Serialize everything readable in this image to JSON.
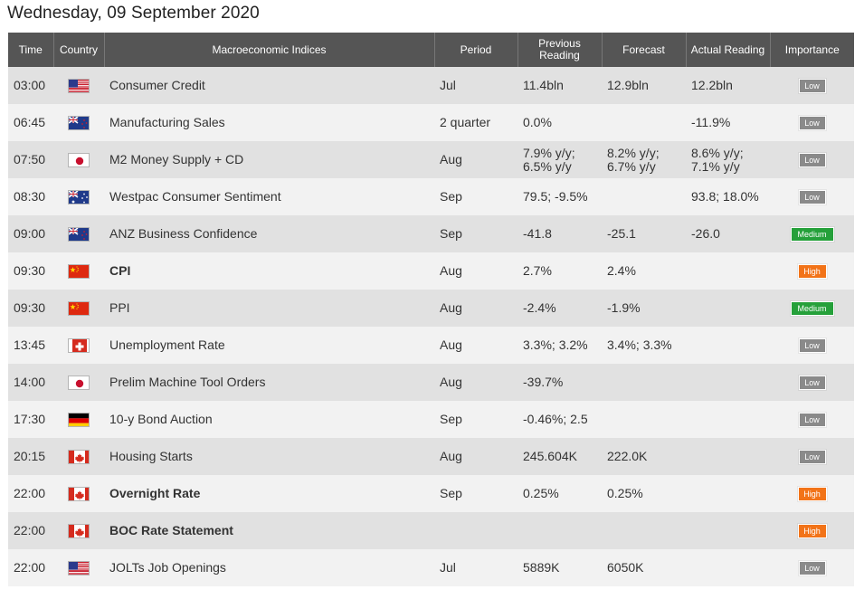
{
  "page": {
    "title": "Wednesday, 09 September 2020"
  },
  "colors": {
    "header_bg": "#555555",
    "row_odd": "#e1e1e1",
    "row_even": "#f2f2f2",
    "negative": "#e2211c",
    "positive": "#2e8b1e",
    "low": "#8a8a8a",
    "medium": "#25a03a",
    "high": "#f27318"
  },
  "headers": {
    "time": "Time",
    "country": "Country",
    "index": "Macroeconomic Indices",
    "period": "Period",
    "previous_line1": "Previous",
    "previous_line2": "Reading",
    "forecast": "Forecast",
    "actual": "Actual Reading",
    "importance": "Importance"
  },
  "rows": [
    {
      "time": "03:00",
      "country": "us-flag-icon",
      "index": "Consumer Credit",
      "bold": false,
      "period": "Jul",
      "previous": [
        "11.4bln"
      ],
      "forecast": [
        "12.9bln"
      ],
      "actual": [
        "12.2bln"
      ],
      "actual_tone": "neg",
      "importance": "Low",
      "imp_class": "low"
    },
    {
      "time": "06:45",
      "country": "nz-flag-icon",
      "index": "Manufacturing Sales",
      "bold": false,
      "period": "2 quarter",
      "previous": [
        "0.0%"
      ],
      "forecast": [
        ""
      ],
      "actual": [
        "-11.9%"
      ],
      "actual_tone": "neu",
      "importance": "Low",
      "imp_class": "low"
    },
    {
      "time": "07:50",
      "country": "jp-flag-icon",
      "index": "M2 Money Supply + CD",
      "bold": false,
      "period": "Aug",
      "previous": [
        "7.9% y/y;",
        "6.5% y/y"
      ],
      "forecast": [
        "8.2% y/y;",
        "6.7% y/y"
      ],
      "actual": [
        "8.6% y/y;",
        "7.1% y/y"
      ],
      "actual_tone": "pos",
      "importance": "Low",
      "imp_class": "low"
    },
    {
      "time": "08:30",
      "country": "au-flag-icon",
      "index": "Westpac Consumer Sentiment",
      "bold": false,
      "period": "Sep",
      "previous": [
        "79.5; -9.5%"
      ],
      "forecast": [
        ""
      ],
      "actual": [
        "93.8; 18.0%"
      ],
      "actual_tone": "neu",
      "importance": "Low",
      "imp_class": "low"
    },
    {
      "time": "09:00",
      "country": "nz-flag-icon",
      "index": "ANZ Business Confidence",
      "bold": false,
      "period": "Sep",
      "previous": [
        "-41.8"
      ],
      "forecast": [
        "-25.1"
      ],
      "actual": [
        "-26.0"
      ],
      "actual_tone": "neg",
      "importance": "Medium",
      "imp_class": "medium"
    },
    {
      "time": "09:30",
      "country": "cn-flag-icon",
      "index": "CPI",
      "bold": true,
      "period": "Aug",
      "previous": [
        "2.7%"
      ],
      "forecast": [
        "2.4%"
      ],
      "actual": [
        ""
      ],
      "actual_tone": "neu",
      "importance": "High",
      "imp_class": "high"
    },
    {
      "time": "09:30",
      "country": "cn-flag-icon",
      "index": "PPI",
      "bold": false,
      "period": "Aug",
      "previous": [
        "-2.4%"
      ],
      "forecast": [
        "-1.9%"
      ],
      "actual": [
        ""
      ],
      "actual_tone": "neu",
      "importance": "Medium",
      "imp_class": "medium"
    },
    {
      "time": "13:45",
      "country": "ch-flag-icon",
      "index": "Unemployment Rate",
      "bold": false,
      "period": "Aug",
      "previous": [
        "3.3%; 3.2%"
      ],
      "forecast": [
        "3.4%; 3.3%"
      ],
      "actual": [
        ""
      ],
      "actual_tone": "neu",
      "importance": "Low",
      "imp_class": "low"
    },
    {
      "time": "14:00",
      "country": "jp-flag-icon",
      "index": "Prelim Machine Tool Orders",
      "bold": false,
      "period": "Aug",
      "previous": [
        "-39.7%"
      ],
      "forecast": [
        ""
      ],
      "actual": [
        ""
      ],
      "actual_tone": "neu",
      "importance": "Low",
      "imp_class": "low"
    },
    {
      "time": "17:30",
      "country": "de-flag-icon",
      "index": "10-y Bond Auction",
      "bold": false,
      "period": "Sep",
      "previous": [
        "-0.46%; 2.5"
      ],
      "forecast": [
        ""
      ],
      "actual": [
        ""
      ],
      "actual_tone": "neu",
      "importance": "Low",
      "imp_class": "low"
    },
    {
      "time": "20:15",
      "country": "ca-flag-icon",
      "index": "Housing Starts",
      "bold": false,
      "period": "Aug",
      "previous": [
        "245.604K"
      ],
      "forecast": [
        "222.0K"
      ],
      "actual": [
        ""
      ],
      "actual_tone": "neu",
      "importance": "Low",
      "imp_class": "low"
    },
    {
      "time": "22:00",
      "country": "ca-flag-icon",
      "index": "Overnight Rate",
      "bold": true,
      "period": "Sep",
      "previous": [
        "0.25%"
      ],
      "forecast": [
        "0.25%"
      ],
      "actual": [
        ""
      ],
      "actual_tone": "neu",
      "importance": "High",
      "imp_class": "high"
    },
    {
      "time": "22:00",
      "country": "ca-flag-icon",
      "index": "BOC Rate Statement",
      "bold": true,
      "period": "",
      "previous": [
        ""
      ],
      "forecast": [
        ""
      ],
      "actual": [
        ""
      ],
      "actual_tone": "neu",
      "importance": "High",
      "imp_class": "high"
    },
    {
      "time": "22:00",
      "country": "us-flag-icon",
      "index": "JOLTs Job Openings",
      "bold": false,
      "period": "Jul",
      "previous": [
        "5889K"
      ],
      "forecast": [
        "6050K"
      ],
      "actual": [
        ""
      ],
      "actual_tone": "neu",
      "importance": "Low",
      "imp_class": "low"
    }
  ]
}
